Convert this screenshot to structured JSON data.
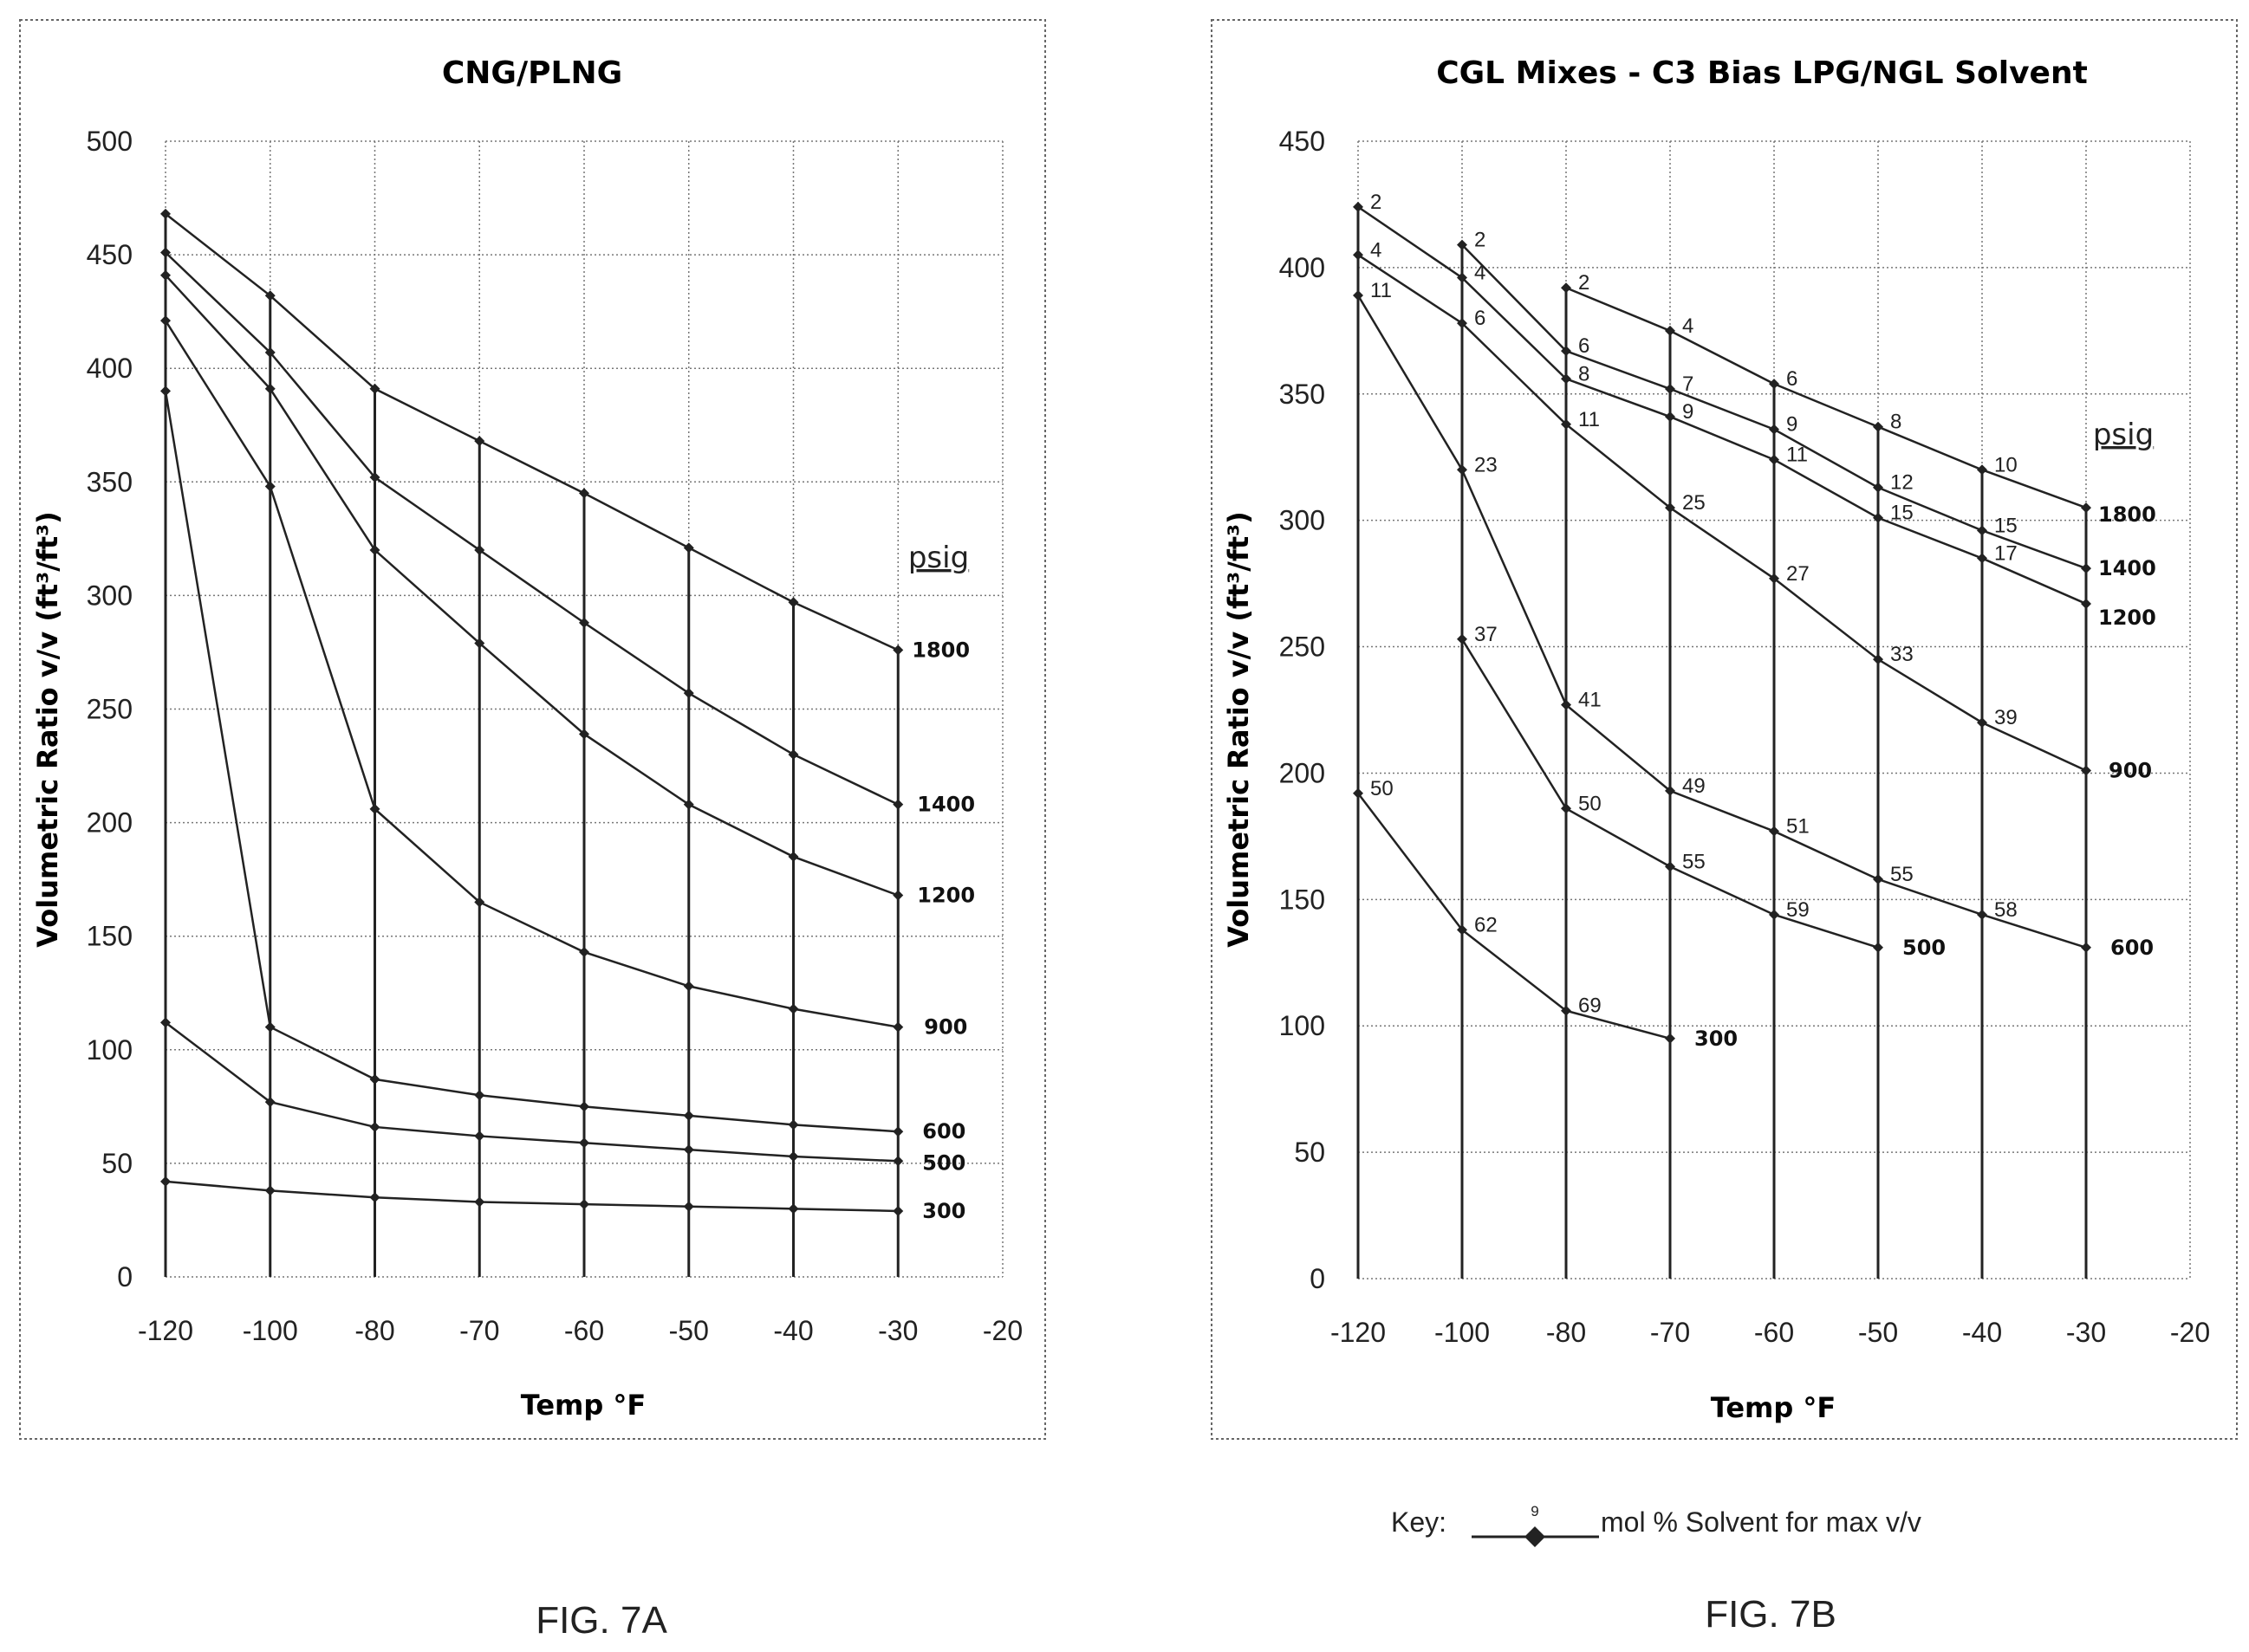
{
  "key": {
    "label": "Key:",
    "sample_value": "9",
    "text": "mol % Solvent for max v/v"
  },
  "figures": [
    {
      "caption": "FIG. 7A"
    },
    {
      "caption": "FIG. 7B"
    }
  ],
  "chart_data": [
    {
      "type": "line",
      "title": "CNG/PLNG",
      "xlabel": "Temp °F",
      "ylabel": "Volumetric Ratio v/v (ft³/ft³)",
      "xlim": [
        -120,
        -20
      ],
      "ylim": [
        0,
        500
      ],
      "x_ticks": [
        -120,
        -100,
        -80,
        -70,
        -60,
        -50,
        -40,
        -30,
        -20
      ],
      "y_ticks": [
        0,
        50,
        100,
        150,
        200,
        250,
        300,
        350,
        400,
        450,
        500
      ],
      "grid": true,
      "series_label_title": "psig",
      "series": [
        {
          "name": "1800",
          "x": [
            -120,
            -100,
            -80,
            -70,
            -60,
            -50,
            -40,
            -30
          ],
          "y": [
            468,
            432,
            391,
            368,
            345,
            321,
            297,
            276
          ]
        },
        {
          "name": "1400",
          "x": [
            -120,
            -100,
            -80,
            -70,
            -60,
            -50,
            -40,
            -30
          ],
          "y": [
            451,
            407,
            352,
            320,
            288,
            257,
            230,
            208
          ]
        },
        {
          "name": "1200",
          "x": [
            -120,
            -100,
            -80,
            -70,
            -60,
            -50,
            -40,
            -30
          ],
          "y": [
            441,
            391,
            320,
            279,
            239,
            208,
            185,
            168
          ]
        },
        {
          "name": "900",
          "x": [
            -120,
            -100,
            -80,
            -70,
            -60,
            -50,
            -40,
            -30
          ],
          "y": [
            421,
            348,
            206,
            165,
            143,
            128,
            118,
            110
          ]
        },
        {
          "name": "600",
          "x": [
            -120,
            -100,
            -80,
            -70,
            -60,
            -50,
            -40,
            -30
          ],
          "y": [
            390,
            110,
            87,
            80,
            75,
            71,
            67,
            64
          ]
        },
        {
          "name": "500",
          "x": [
            -120,
            -100,
            -80,
            -70,
            -60,
            -50,
            -40,
            -30
          ],
          "y": [
            112,
            77,
            66,
            62,
            59,
            56,
            53,
            51
          ]
        },
        {
          "name": "300",
          "x": [
            -120,
            -100,
            -80,
            -70,
            -60,
            -50,
            -40,
            -30
          ],
          "y": [
            42,
            38,
            35,
            33,
            32,
            31,
            30,
            29
          ]
        }
      ]
    },
    {
      "type": "line",
      "title": "CGL Mixes - C3 Bias LPG/NGL Solvent",
      "xlabel": "Temp °F",
      "ylabel": "Volumetric Ratio v/v (ft³/ft³)",
      "xlim": [
        -120,
        -20
      ],
      "ylim": [
        0,
        450
      ],
      "x_ticks": [
        -120,
        -100,
        -80,
        -70,
        -60,
        -50,
        -40,
        -30,
        -20
      ],
      "y_ticks": [
        0,
        50,
        100,
        150,
        200,
        250,
        300,
        350,
        400,
        450
      ],
      "grid": true,
      "series_label_title": "psig",
      "series": [
        {
          "name": "1800",
          "x": [
            -80,
            -70,
            -60,
            -50,
            -40,
            -30
          ],
          "y": [
            392,
            375,
            354,
            337,
            320,
            305
          ],
          "point_labels": [
            "2",
            "4",
            "6",
            "8",
            "10",
            ""
          ]
        },
        {
          "name": "1400",
          "x": [
            -100,
            -80,
            -70,
            -60,
            -50,
            -40,
            -30
          ],
          "y": [
            409,
            367,
            352,
            336,
            313,
            296,
            281
          ],
          "point_labels": [
            "2",
            "6",
            "7",
            "9",
            "12",
            "15",
            ""
          ]
        },
        {
          "name": "1200",
          "x": [
            -120,
            -100,
            -80,
            -70,
            -60,
            -50,
            -40,
            -30
          ],
          "y": [
            424,
            396,
            356,
            341,
            324,
            301,
            285,
            267
          ],
          "point_labels": [
            "2",
            "4",
            "8",
            "9",
            "11",
            "15",
            "17",
            ""
          ]
        },
        {
          "name": "900",
          "x": [
            -120,
            -100,
            -80,
            -70,
            -60,
            -50,
            -40,
            -30
          ],
          "y": [
            405,
            378,
            338,
            305,
            277,
            245,
            220,
            201
          ],
          "point_labels": [
            "4",
            "6",
            "11",
            "25",
            "27",
            "33",
            "39",
            ""
          ]
        },
        {
          "name": "600",
          "x": [
            -120,
            -100,
            -80,
            -70,
            -60,
            -50,
            -40,
            -30
          ],
          "y": [
            389,
            320,
            227,
            193,
            177,
            158,
            144,
            131
          ],
          "point_labels": [
            "11",
            "23",
            "41",
            "49",
            "51",
            "55",
            "58",
            ""
          ]
        },
        {
          "name": "500",
          "x": [
            -100,
            -80,
            -70,
            -60,
            -50
          ],
          "y": [
            253,
            186,
            163,
            144,
            131
          ],
          "point_labels": [
            "37",
            "50",
            "55",
            "59",
            ""
          ]
        },
        {
          "name": "300",
          "x": [
            -120,
            -100,
            -80,
            -70
          ],
          "y": [
            192,
            138,
            106,
            95
          ],
          "point_labels": [
            "50",
            "62",
            "69",
            ""
          ]
        }
      ]
    }
  ]
}
